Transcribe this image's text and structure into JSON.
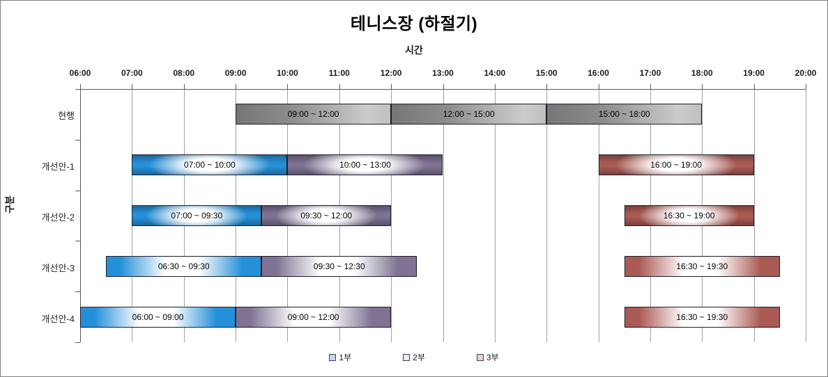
{
  "window": {
    "background_color": "#ffffff",
    "frame_border_color": "#7f7f7f"
  },
  "chart_data": {
    "type": "bar",
    "subtype": "gantt-time-range",
    "title": "테니스장 (하절기)",
    "xlabel": "시간",
    "ylabel": "구분",
    "grid": {
      "vertical": true,
      "color": "#a0a0a0"
    },
    "x_axis": {
      "min_hour": 6,
      "max_hour": 20,
      "tick_interval_hours": 1,
      "tick_labels": [
        "06:00",
        "07:00",
        "08:00",
        "09:00",
        "10:00",
        "11:00",
        "12:00",
        "13:00",
        "14:00",
        "15:00",
        "16:00",
        "17:00",
        "18:00",
        "19:00",
        "20:00"
      ]
    },
    "categories": [
      "현행",
      "개선안-1",
      "개선안-2",
      "개선안-3",
      "개선안-4"
    ],
    "colors": {
      "current": "#8c8c8c",
      "part1": "#2590d8",
      "part2": "#7f7292",
      "part3": "#aa5a54"
    },
    "rows": [
      {
        "category": "현행",
        "bars": [
          {
            "label": "09:00 ~ 12:00",
            "start": 9,
            "end": 12,
            "series": "현행",
            "color_key": "current",
            "fill_style": "horizontal"
          },
          {
            "label": "12:00 ~ 15:00",
            "start": 12,
            "end": 15,
            "series": "현행",
            "color_key": "current",
            "fill_style": "horizontal"
          },
          {
            "label": "15:00 ~ 18:00",
            "start": 15,
            "end": 18,
            "series": "현행",
            "color_key": "current",
            "fill_style": "horizontal"
          }
        ]
      },
      {
        "category": "개선안-1",
        "bars": [
          {
            "label": "07:00 ~ 10:00",
            "start": 7,
            "end": 10,
            "series": "1부",
            "color_key": "part1",
            "fill_style": "radial"
          },
          {
            "label": "10:00 ~ 13:00",
            "start": 10,
            "end": 13,
            "series": "2부",
            "color_key": "part2",
            "fill_style": "radial"
          },
          {
            "label": "16:00 ~ 19:00",
            "start": 16,
            "end": 19,
            "series": "3부",
            "color_key": "part3",
            "fill_style": "radial"
          }
        ]
      },
      {
        "category": "개선안-2",
        "bars": [
          {
            "label": "07:00 ~ 09:30",
            "start": 7,
            "end": 9.5,
            "series": "1부",
            "color_key": "part1",
            "fill_style": "radial"
          },
          {
            "label": "09:30 ~ 12:00",
            "start": 9.5,
            "end": 12,
            "series": "2부",
            "color_key": "part2",
            "fill_style": "radial"
          },
          {
            "label": "16:30 ~ 19:00",
            "start": 16.5,
            "end": 19,
            "series": "3부",
            "color_key": "part3",
            "fill_style": "radial"
          }
        ]
      },
      {
        "category": "개선안-3",
        "bars": [
          {
            "label": "06:30 ~ 09:30",
            "start": 6.5,
            "end": 9.5,
            "series": "1부",
            "color_key": "part1",
            "fill_style": "linear"
          },
          {
            "label": "09:30 ~ 12:30",
            "start": 9.5,
            "end": 12.5,
            "series": "2부",
            "color_key": "part2",
            "fill_style": "linear"
          },
          {
            "label": "16:30 ~ 19:30",
            "start": 16.5,
            "end": 19.5,
            "series": "3부",
            "color_key": "part3",
            "fill_style": "linear"
          }
        ]
      },
      {
        "category": "개선안-4",
        "bars": [
          {
            "label": "06:00 ~ 09:00",
            "start": 6,
            "end": 9,
            "series": "1부",
            "color_key": "part1",
            "fill_style": "linear"
          },
          {
            "label": "09:00 ~ 12:00",
            "start": 9,
            "end": 12,
            "series": "2부",
            "color_key": "part2",
            "fill_style": "linear"
          },
          {
            "label": "16:30 ~ 19:30",
            "start": 16.5,
            "end": 19.5,
            "series": "3부",
            "color_key": "part3",
            "fill_style": "linear"
          }
        ]
      }
    ],
    "legend": {
      "position": "bottom",
      "items": [
        {
          "label": "1부",
          "swatch_color": "#bdd7ee"
        },
        {
          "label": "2부",
          "swatch_color": "#ece9f1"
        },
        {
          "label": "3부",
          "swatch_color": "#f1cdc9"
        }
      ]
    }
  }
}
